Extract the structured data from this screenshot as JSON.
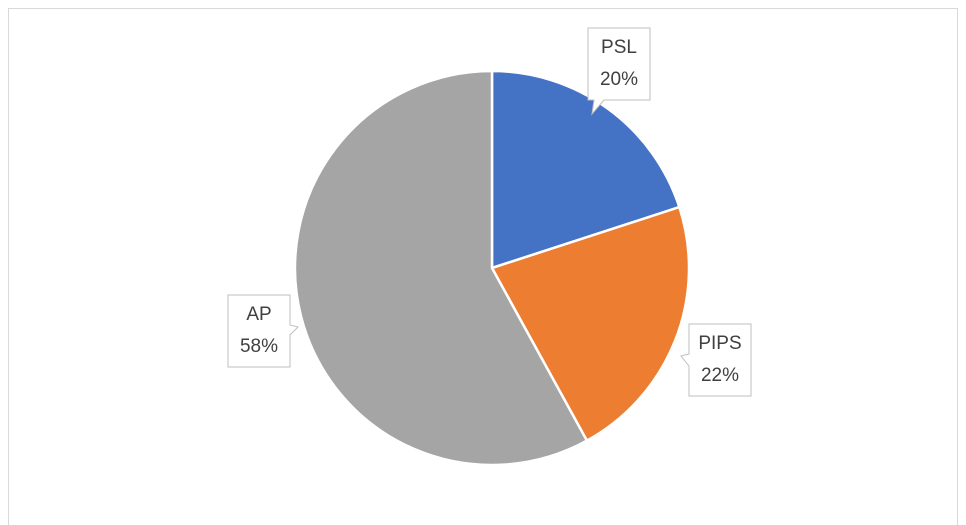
{
  "chart_data": {
    "type": "pie",
    "categories": [
      "PSL",
      "PIPS",
      "AP"
    ],
    "values": [
      20,
      22,
      58
    ],
    "value_labels": [
      "20%",
      "22%",
      "58%"
    ],
    "colors": [
      "#4472c4",
      "#ed7d31",
      "#a5a5a5"
    ]
  }
}
